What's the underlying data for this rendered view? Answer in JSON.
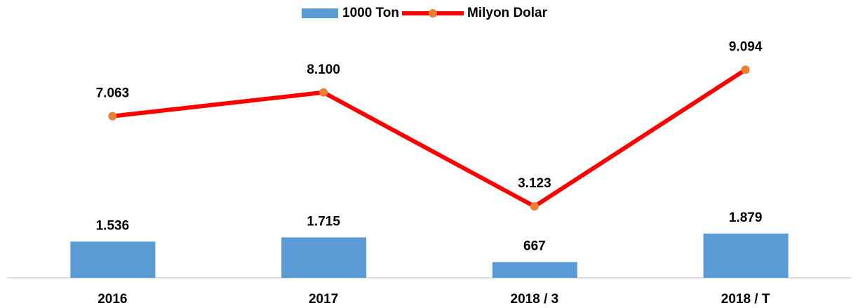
{
  "chart_data": {
    "type": "bar_line",
    "categories": [
      "2016",
      "2017",
      "2018 / 3",
      "2018 / T"
    ],
    "series": [
      {
        "name": "1000 Ton",
        "type": "bar",
        "color": "#5b9bd5",
        "values": [
          1536,
          1715,
          667,
          1879
        ],
        "value_labels": [
          "1.536",
          "1.715",
          "667",
          "1.879"
        ]
      },
      {
        "name": "Milyon Dolar",
        "type": "line",
        "axis": "y2",
        "color": "#ff0000",
        "marker_color": "#ed7d31",
        "values": [
          7063,
          8100,
          3123,
          9094
        ],
        "value_labels": [
          "7.063",
          "8.100",
          "3.123",
          "9.094"
        ]
      }
    ],
    "ylim": [
      0,
      10000
    ],
    "y2lim": [
      0,
      10300
    ],
    "legend": "top"
  }
}
